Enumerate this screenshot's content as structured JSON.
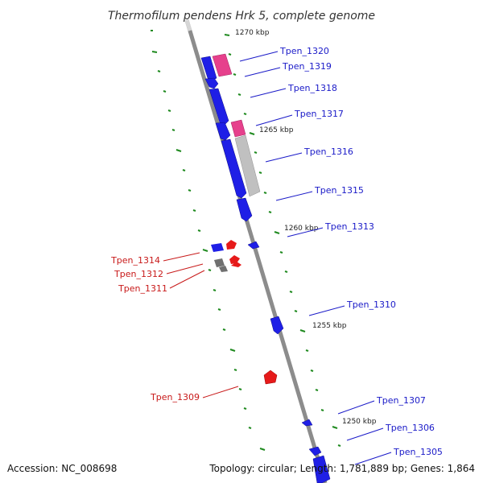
{
  "title": "Thermofilum pendens Hrk 5, complete genome",
  "footer": {
    "accession": "Accession: NC_008698",
    "summary": "Topology: circular; Length: 1,781,889 bp; Genes: 1,864"
  },
  "colors": {
    "backbone": "#8c8c8c",
    "forward_gene": "#1f1fe6",
    "reverse_gene": "#e61a1a",
    "rna_feature": "#e6408c",
    "pseudo_feature": "#c0c0c0",
    "grey_gene": "#707070",
    "tick": "#1f8a1f",
    "label_blue": "#1a1ac8",
    "label_red": "#c81a1a"
  },
  "scale_labels": [
    "1270 kbp",
    "1265 kbp",
    "1260 kbp",
    "1255 kbp",
    "1250 kbp"
  ],
  "gene_labels_right": [
    "Tpen_1320",
    "Tpen_1319",
    "Tpen_1318",
    "Tpen_1317",
    "Tpen_1316",
    "Tpen_1315",
    "Tpen_1313",
    "Tpen_1310",
    "Tpen_1307",
    "Tpen_1306",
    "Tpen_1305"
  ],
  "gene_labels_left": [
    "Tpen_1314",
    "Tpen_1312",
    "Tpen_1311",
    "Tpen_1309"
  ]
}
